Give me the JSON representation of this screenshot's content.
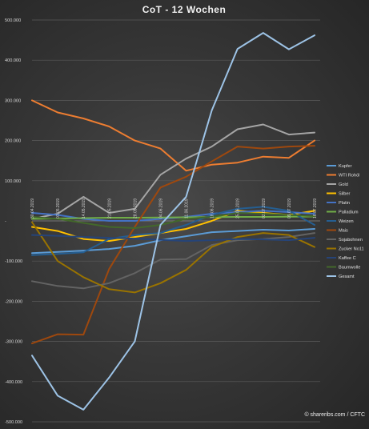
{
  "chart_data": {
    "type": "line",
    "title": "CoT - 12 Wochen",
    "xlabel": "",
    "ylabel": "",
    "ylim": [
      -500000,
      500000
    ],
    "yticks": [
      500000,
      400000,
      300000,
      200000,
      100000,
      0,
      -100000,
      -200000,
      -300000,
      -400000,
      -500000
    ],
    "ytick_labels": [
      "500.000",
      "400.000",
      "300.000",
      "200.000",
      "100.000",
      "-",
      "-100.000",
      "-200.000",
      "-300.000",
      "-400.000",
      "-500.000"
    ],
    "categories": [
      "30.04.2019",
      "07.05.2019",
      "14.05.2019",
      "21.05.2019",
      "28.05.2019",
      "04.06.2019",
      "11.06.2019",
      "18.06.2019",
      "25.06.2019",
      "02.07.2019",
      "09.07.2019",
      "16.07.2019"
    ],
    "grid": true,
    "legend_position": "right",
    "series": [
      {
        "name": "Kupfer",
        "color": "#5b9bd5",
        "values": [
          -80000,
          -77000,
          -74000,
          -70000,
          -62000,
          -48000,
          -38000,
          -28000,
          -25000,
          -22000,
          -24000,
          -20000
        ]
      },
      {
        "name": "WTI Rohöl",
        "color": "#ed7d31",
        "values": [
          300000,
          270000,
          255000,
          235000,
          200000,
          180000,
          125000,
          140000,
          145000,
          160000,
          157000,
          200000
        ]
      },
      {
        "name": "Gold",
        "color": "#a5a5a5",
        "values": [
          5000,
          18000,
          60000,
          20000,
          30000,
          115000,
          155000,
          185000,
          228000,
          240000,
          215000,
          220000
        ]
      },
      {
        "name": "Silber",
        "color": "#ffc000",
        "values": [
          -15000,
          -25000,
          -45000,
          -50000,
          -40000,
          -30000,
          -20000,
          0,
          25000,
          20000,
          15000,
          25000
        ]
      },
      {
        "name": "Platin",
        "color": "#4472c4",
        "values": [
          20000,
          15000,
          5000,
          0,
          0,
          5000,
          10000,
          18000,
          22000,
          25000,
          22000,
          18000
        ]
      },
      {
        "name": "Palladium",
        "color": "#70ad47",
        "values": [
          5000,
          6000,
          7000,
          8000,
          8000,
          8500,
          9000,
          9500,
          10000,
          10000,
          10500,
          11000
        ]
      },
      {
        "name": "Weizen",
        "color": "#255e91",
        "values": [
          -85000,
          -82000,
          -78000,
          -45000,
          -35000,
          -30000,
          -10000,
          15000,
          30000,
          35000,
          25000,
          -10000
        ]
      },
      {
        "name": "Mais",
        "color": "#9e480e",
        "values": [
          -305000,
          -282000,
          -283000,
          -120000,
          -15000,
          83000,
          110000,
          148000,
          185000,
          180000,
          185000,
          187000
        ]
      },
      {
        "name": "Sojabohnen",
        "color": "#636363",
        "values": [
          -150000,
          -162000,
          -168000,
          -155000,
          -130000,
          -96000,
          -95000,
          -60000,
          -48000,
          -45000,
          -40000,
          -30000
        ]
      },
      {
        "name": "Zucker No11",
        "color": "#997300",
        "values": [
          -3000,
          -100000,
          -140000,
          -170000,
          -178000,
          -155000,
          -122000,
          -65000,
          -40000,
          -30000,
          -35000,
          -65000
        ]
      },
      {
        "name": "Kaffee C",
        "color": "#264478",
        "values": [
          -35000,
          -37000,
          -40000,
          -42000,
          -44000,
          -47000,
          -50000,
          -48000,
          -45000,
          -46000,
          -48000,
          -42000
        ]
      },
      {
        "name": "Baumwolle",
        "color": "#43682b",
        "values": [
          10000,
          5000,
          -5000,
          -15000,
          -18000,
          -10000,
          5000,
          10000,
          20000,
          18000,
          15000,
          12000
        ]
      },
      {
        "name": "Gesamt",
        "color": "#9dc3e6",
        "values": [
          -335000,
          -435000,
          -470000,
          -390000,
          -300000,
          -10000,
          60000,
          275000,
          428000,
          468000,
          427000,
          462000
        ]
      }
    ]
  },
  "credit": "© shareribs.com / CFTC"
}
